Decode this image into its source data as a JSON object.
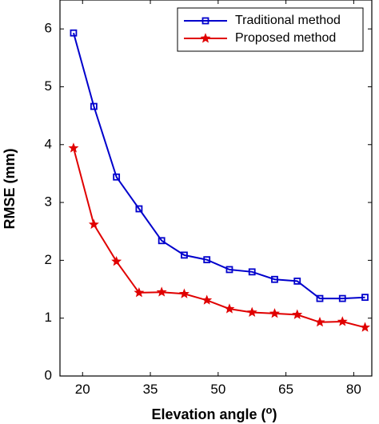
{
  "chart_data": {
    "type": "line",
    "xlabel": "Elevation angle (",
    "xlabel_superscript": "o",
    "xlabel_suffix": ")",
    "ylabel": "RMSE (mm)",
    "xlim": [
      15,
      84
    ],
    "ylim": [
      0,
      6.5
    ],
    "x_ticks": [
      20,
      35,
      50,
      65,
      80
    ],
    "y_ticks": [
      0,
      1,
      2,
      3,
      4,
      5,
      6
    ],
    "grid": false,
    "legend_position": "top-right",
    "x": [
      18,
      22.5,
      27.5,
      32.5,
      37.5,
      42.5,
      47.5,
      52.5,
      57.5,
      62.5,
      67.5,
      72.5,
      77.5,
      82.5
    ],
    "series": [
      {
        "name": "Traditional method",
        "color": "#0000cc",
        "marker": "square",
        "values": [
          5.93,
          4.66,
          3.44,
          2.89,
          2.34,
          2.09,
          2.01,
          1.84,
          1.8,
          1.67,
          1.64,
          1.34,
          1.34,
          1.36
        ]
      },
      {
        "name": "Proposed method",
        "color": "#e00000",
        "marker": "star",
        "values": [
          3.94,
          2.62,
          1.98,
          1.44,
          1.45,
          1.42,
          1.31,
          1.16,
          1.1,
          1.08,
          1.06,
          0.93,
          0.94,
          0.84
        ]
      }
    ]
  }
}
